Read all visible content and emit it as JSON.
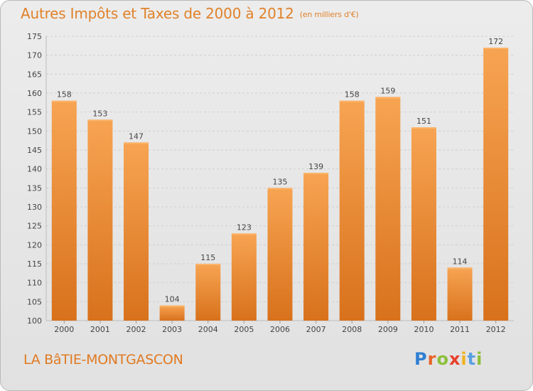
{
  "title": "Autres Impôts et Taxes de 2000 à 2012",
  "unit": "(en milliers d'€)",
  "commune": "LA BâTIE-MONTGASCON",
  "brand": {
    "letters": [
      "P",
      "r",
      "o",
      "x",
      "i",
      "t",
      "i"
    ],
    "colors": [
      "#2f7fd3",
      "#e8632a",
      "#8cc03a",
      "#e8402a",
      "#f0b21c",
      "#5aa0e0",
      "#8cc03a"
    ]
  },
  "colors": {
    "bar": "#f2923a",
    "bar_dark": "#d9741f",
    "text": "#e0822a"
  },
  "chart_data": {
    "type": "bar",
    "title": "Autres Impôts et Taxes de 2000 à 2012",
    "categories": [
      "2000",
      "2001",
      "2002",
      "2003",
      "2004",
      "2005",
      "2006",
      "2007",
      "2008",
      "2009",
      "2010",
      "2011",
      "2012"
    ],
    "values": [
      158,
      153,
      147,
      104,
      115,
      123,
      135,
      139,
      158,
      159,
      151,
      114,
      172
    ],
    "ylim": [
      100,
      175
    ],
    "yticks": [
      100,
      105,
      110,
      115,
      120,
      125,
      130,
      135,
      140,
      145,
      150,
      155,
      160,
      165,
      170,
      175
    ],
    "grid": true,
    "legend": "none"
  }
}
